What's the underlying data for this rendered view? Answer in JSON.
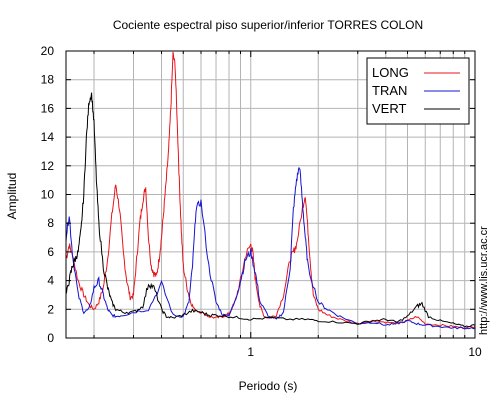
{
  "chart_data": {
    "type": "line",
    "title": "Cociente espectral piso superior/inferior  TORRES COLON",
    "xlabel": "Periodo (s)",
    "ylabel": "Amplitud",
    "x_scale": "log",
    "xlim": [
      0.15,
      10
    ],
    "ylim": [
      0,
      20
    ],
    "x_ticks": [
      1,
      10
    ],
    "x_tick_labels": [
      "1",
      "10"
    ],
    "y_ticks": [
      0,
      2,
      4,
      6,
      8,
      10,
      12,
      14,
      16,
      18,
      20
    ],
    "y_tick_labels": [
      "0",
      "2",
      "4",
      "6",
      "8",
      "10",
      "12",
      "14",
      "16",
      "18",
      "20"
    ],
    "grid": true,
    "legend_position": "top-right",
    "series": [
      {
        "name": "LONG",
        "color": "#e8141c",
        "x": [
          0.15,
          0.155,
          0.16,
          0.17,
          0.18,
          0.19,
          0.2,
          0.21,
          0.22,
          0.23,
          0.24,
          0.25,
          0.26,
          0.27,
          0.28,
          0.29,
          0.3,
          0.31,
          0.32,
          0.33,
          0.34,
          0.35,
          0.36,
          0.37,
          0.38,
          0.39,
          0.4,
          0.41,
          0.42,
          0.43,
          0.44,
          0.45,
          0.46,
          0.47,
          0.48,
          0.49,
          0.5,
          0.52,
          0.54,
          0.56,
          0.6,
          0.65,
          0.7,
          0.75,
          0.8,
          0.85,
          0.9,
          0.95,
          1.0,
          1.02,
          1.05,
          1.1,
          1.15,
          1.2,
          1.3,
          1.4,
          1.5,
          1.55,
          1.6,
          1.7,
          1.75,
          1.8,
          1.85,
          1.9,
          2.0,
          2.2,
          2.5,
          3.0,
          3.5,
          4.0,
          4.5,
          5.0,
          5.5,
          6.0,
          7.0,
          8.0,
          9.0,
          10.0
        ],
        "y": [
          5.5,
          6.5,
          5.8,
          4.0,
          3.0,
          2.3,
          2.0,
          2.5,
          3.5,
          5.5,
          8.5,
          10.7,
          9.0,
          6.0,
          4.0,
          2.8,
          3.0,
          5.5,
          8.0,
          9.6,
          10.5,
          7.0,
          5.0,
          4.5,
          4.3,
          5.5,
          7.0,
          9.0,
          11.0,
          13.0,
          16.0,
          19.8,
          19.0,
          15.0,
          11.0,
          7.5,
          5.0,
          3.5,
          2.5,
          2.0,
          1.8,
          1.5,
          1.4,
          1.5,
          1.7,
          2.5,
          4.0,
          5.8,
          6.5,
          6.0,
          4.0,
          2.2,
          1.5,
          1.4,
          1.6,
          3.0,
          5.5,
          6.0,
          6.5,
          9.0,
          10.0,
          7.5,
          5.0,
          3.0,
          2.0,
          1.6,
          1.3,
          1.0,
          1.2,
          1.1,
          1.0,
          1.2,
          1.5,
          1.0,
          0.9,
          0.8,
          0.7,
          0.8
        ]
      },
      {
        "name": "TRAN",
        "color": "#1414d2",
        "x": [
          0.15,
          0.155,
          0.16,
          0.17,
          0.18,
          0.19,
          0.2,
          0.21,
          0.22,
          0.23,
          0.24,
          0.25,
          0.27,
          0.3,
          0.35,
          0.4,
          0.45,
          0.5,
          0.53,
          0.55,
          0.57,
          0.6,
          0.65,
          0.7,
          0.75,
          0.8,
          0.85,
          0.9,
          0.95,
          1.0,
          1.05,
          1.1,
          1.2,
          1.3,
          1.4,
          1.5,
          1.55,
          1.6,
          1.65,
          1.7,
          1.75,
          1.8,
          2.0,
          2.2,
          2.5,
          3.0,
          3.5,
          4.0,
          4.5,
          5.0,
          5.5,
          6.0,
          7.0,
          8.0,
          9.0,
          10.0
        ],
        "y": [
          7.0,
          8.6,
          6.0,
          3.0,
          1.8,
          2.0,
          3.5,
          4.0,
          3.0,
          2.0,
          1.6,
          1.5,
          1.6,
          1.8,
          2.0,
          3.8,
          1.6,
          1.5,
          2.5,
          5.0,
          9.0,
          9.5,
          5.0,
          2.5,
          1.6,
          1.6,
          2.5,
          4.0,
          5.5,
          6.0,
          4.5,
          2.5,
          1.5,
          1.3,
          1.8,
          5.0,
          9.0,
          11.0,
          12.0,
          9.5,
          7.0,
          5.0,
          2.5,
          2.0,
          1.5,
          1.0,
          1.1,
          0.9,
          1.0,
          1.2,
          1.0,
          0.9,
          0.8,
          0.7,
          0.7,
          0.7
        ]
      },
      {
        "name": "VERT",
        "color": "#000000",
        "x": [
          0.15,
          0.155,
          0.16,
          0.165,
          0.17,
          0.175,
          0.18,
          0.185,
          0.19,
          0.195,
          0.2,
          0.205,
          0.21,
          0.22,
          0.23,
          0.24,
          0.25,
          0.27,
          0.3,
          0.33,
          0.35,
          0.37,
          0.4,
          0.42,
          0.45,
          0.5,
          0.55,
          0.6,
          0.65,
          0.7,
          0.8,
          0.9,
          1.0,
          1.2,
          1.5,
          1.8,
          2.0,
          2.5,
          3.0,
          3.5,
          4.0,
          4.5,
          5.0,
          5.5,
          5.8,
          6.2,
          7.0,
          8.0,
          9.0,
          10.0
        ],
        "y": [
          3.0,
          4.0,
          5.0,
          5.5,
          6.0,
          7.5,
          10.0,
          14.0,
          16.5,
          17.0,
          15.0,
          11.0,
          8.0,
          5.0,
          3.5,
          2.5,
          2.0,
          1.8,
          1.8,
          2.2,
          3.8,
          3.5,
          2.0,
          1.5,
          1.4,
          1.6,
          1.9,
          1.8,
          1.6,
          1.6,
          1.5,
          1.4,
          1.3,
          1.4,
          1.3,
          1.3,
          1.2,
          1.1,
          1.0,
          1.2,
          1.3,
          1.1,
          1.5,
          2.2,
          2.4,
          1.5,
          1.2,
          1.0,
          0.8,
          0.9
        ]
      }
    ]
  },
  "side_text": "http://www.lis.ucr.ac.cr"
}
